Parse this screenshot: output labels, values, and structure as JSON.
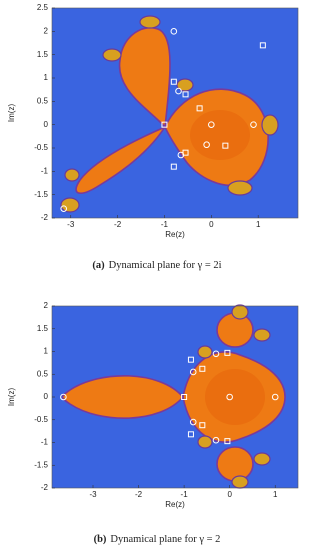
{
  "chart_data": [
    {
      "type": "scatter",
      "xlabel": "Re(z)",
      "ylabel": "Im(z)",
      "caption_label": "(a)",
      "caption": "Dynamical plane for γ = 2i",
      "xlim": [
        -3.4,
        1.85
      ],
      "ylim": [
        -2,
        2.5
      ],
      "xticks": [
        -3,
        -2,
        -1,
        0,
        1
      ],
      "yticks": [
        -2,
        -1.5,
        -1,
        -0.5,
        0,
        0.5,
        1,
        1.5,
        2,
        2.5
      ],
      "series": [
        {
          "marker": "circle",
          "color": "#ffffff",
          "x": [
            -0.8,
            -0.7,
            0,
            0.9,
            -0.1,
            -0.65,
            -3.15
          ],
          "y": [
            2.0,
            0.72,
            0,
            0,
            -0.43,
            -0.65,
            -1.8
          ]
        },
        {
          "marker": "square",
          "color": "#ffffff",
          "x": [
            1.1,
            -0.8,
            -0.55,
            -0.25,
            -1,
            0.3,
            -0.55,
            -0.8
          ],
          "y": [
            1.7,
            0.92,
            0.65,
            0.35,
            0,
            -0.45,
            -0.6,
            -0.9
          ]
        }
      ]
    },
    {
      "type": "scatter",
      "xlabel": "Re(z)",
      "ylabel": "Im(z)",
      "caption_label": "(b)",
      "caption": "Dynamical plane for γ = 2",
      "xlim": [
        -3.9,
        1.5
      ],
      "ylim": [
        -2,
        2
      ],
      "xticks": [
        -3,
        -2,
        -1,
        0,
        1
      ],
      "yticks": [
        -2,
        -1.5,
        -1,
        -0.5,
        0,
        0.5,
        1,
        1.5,
        2
      ],
      "series": [
        {
          "marker": "circle",
          "color": "#ffffff",
          "x": [
            -3.65,
            -0.8,
            -0.8,
            -0.3,
            -0.3,
            0,
            1
          ],
          "y": [
            0,
            0.55,
            -0.55,
            0.95,
            -0.95,
            0,
            0
          ]
        },
        {
          "marker": "square",
          "color": "#ffffff",
          "x": [
            -1,
            -0.85,
            -0.6,
            -0.05,
            -0.85,
            -0.6,
            -0.05
          ],
          "y": [
            0,
            0.82,
            0.62,
            0.97,
            -0.82,
            -0.62,
            -0.97
          ]
        }
      ]
    }
  ]
}
